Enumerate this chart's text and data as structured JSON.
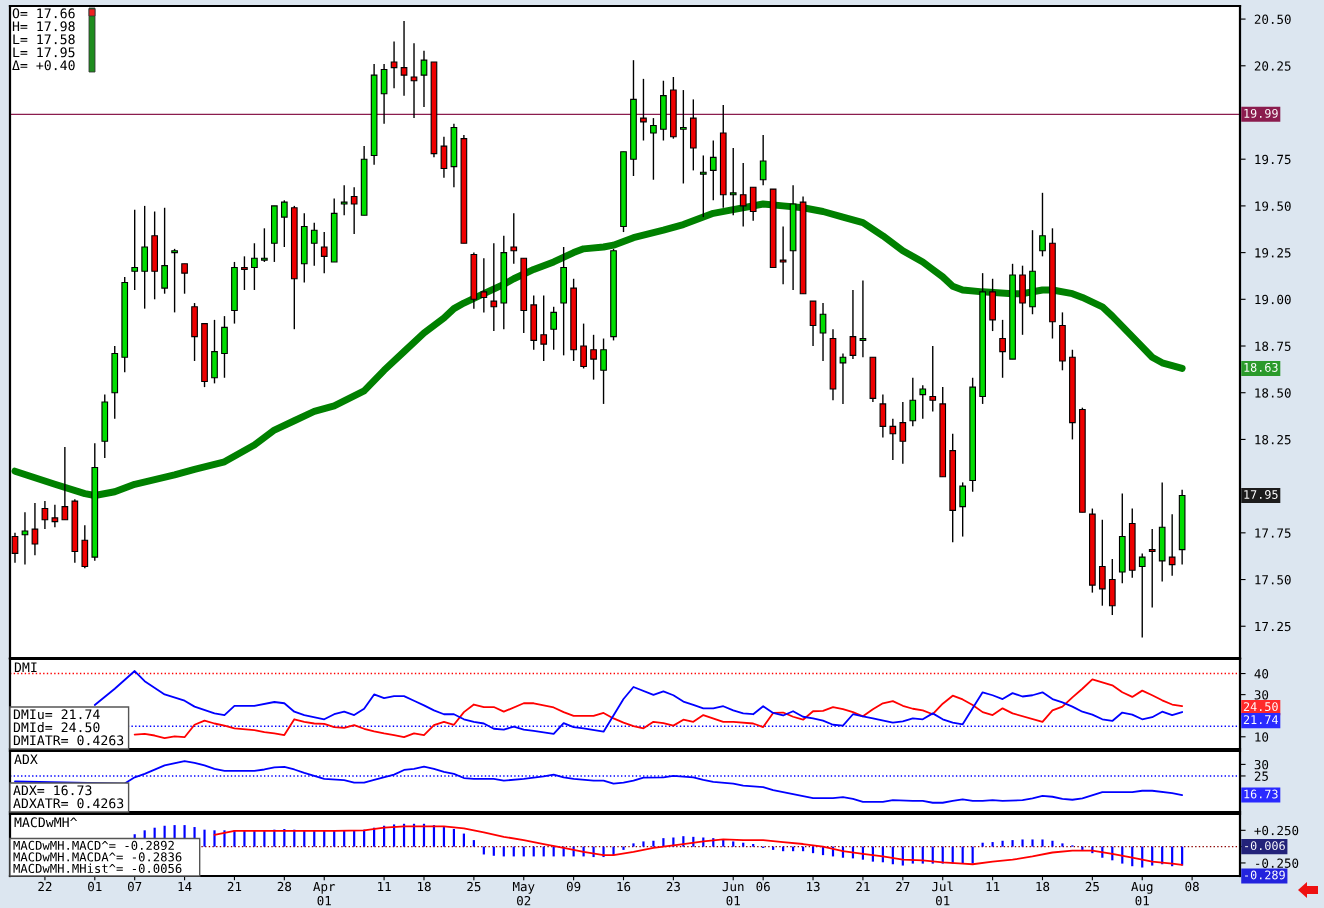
{
  "chart_data": [
    {
      "type": "candlestick",
      "categories": [
        null,
        null,
        null,
        null,
        null,
        null,
        null,
        null,
        null,
        null,
        null,
        null,
        null,
        null,
        null,
        null,
        null,
        null,
        null,
        null,
        null,
        null,
        null,
        null,
        null,
        null,
        null,
        null,
        null,
        null,
        null,
        null,
        null,
        null,
        null,
        null,
        null,
        null,
        null,
        null,
        null,
        null,
        null,
        null,
        null,
        null,
        null,
        null,
        null,
        null,
        null,
        null,
        null,
        null,
        null,
        null,
        null,
        null,
        null,
        null,
        null,
        null,
        null,
        null,
        null,
        null,
        null,
        null,
        null,
        null,
        null,
        null,
        null,
        null,
        null,
        null,
        null,
        null,
        null,
        null,
        null,
        null,
        null,
        null,
        null,
        null,
        null,
        null,
        null,
        null,
        null,
        null,
        null,
        null,
        null,
        null,
        null,
        null,
        null,
        null,
        null,
        null,
        null,
        null,
        null,
        null,
        null,
        null,
        null,
        null,
        null,
        null,
        null,
        null,
        null,
        null,
        null,
        null,
        null
      ],
      "ohlc": [
        [
          17.73,
          17.75,
          17.59,
          17.64
        ],
        [
          17.74,
          17.86,
          17.58,
          17.76
        ],
        [
          17.77,
          17.91,
          17.63,
          17.69
        ],
        [
          17.88,
          17.92,
          17.77,
          17.82
        ],
        [
          17.83,
          17.9,
          17.78,
          17.81
        ],
        [
          17.89,
          18.21,
          17.82,
          17.82
        ],
        [
          17.92,
          17.93,
          17.59,
          17.65
        ],
        [
          17.71,
          17.79,
          17.56,
          17.57
        ],
        [
          17.62,
          18.23,
          17.6,
          18.1
        ],
        [
          18.24,
          18.49,
          18.15,
          18.45
        ],
        [
          18.5,
          18.75,
          18.36,
          18.71
        ],
        [
          18.69,
          19.12,
          18.61,
          19.09
        ],
        [
          19.15,
          19.48,
          19.05,
          19.17
        ],
        [
          19.15,
          19.5,
          18.95,
          19.28
        ],
        [
          19.34,
          19.47,
          19.0,
          19.15
        ],
        [
          19.06,
          19.49,
          19.03,
          19.18
        ],
        [
          19.25,
          19.27,
          18.93,
          19.26
        ],
        [
          19.19,
          19.19,
          19.03,
          19.14
        ],
        [
          18.96,
          18.98,
          18.67,
          18.8
        ],
        [
          18.87,
          18.87,
          18.53,
          18.56
        ],
        [
          18.58,
          18.89,
          18.55,
          18.72
        ],
        [
          18.71,
          18.91,
          18.58,
          18.85
        ],
        [
          18.94,
          19.2,
          18.87,
          19.17
        ],
        [
          19.17,
          19.23,
          19.05,
          19.16
        ],
        [
          19.17,
          19.3,
          19.05,
          19.22
        ],
        [
          19.21,
          19.38,
          19.2,
          19.22
        ],
        [
          19.3,
          19.5,
          19.2,
          19.5
        ],
        [
          19.44,
          19.53,
          19.28,
          19.52
        ],
        [
          19.49,
          19.5,
          18.84,
          19.11
        ],
        [
          19.19,
          19.46,
          19.09,
          19.39
        ],
        [
          19.3,
          19.41,
          19.18,
          19.37
        ],
        [
          19.28,
          19.36,
          19.14,
          19.23
        ],
        [
          19.2,
          19.54,
          19.2,
          19.46
        ],
        [
          19.51,
          19.61,
          19.45,
          19.52
        ],
        [
          19.55,
          19.6,
          19.35,
          19.51
        ],
        [
          19.45,
          19.82,
          19.45,
          19.75
        ],
        [
          19.77,
          20.26,
          19.72,
          20.2
        ],
        [
          20.1,
          20.26,
          19.94,
          20.23
        ],
        [
          20.27,
          20.38,
          20.13,
          20.24
        ],
        [
          20.24,
          20.49,
          20.09,
          20.2
        ],
        [
          20.19,
          20.37,
          19.97,
          20.17
        ],
        [
          20.2,
          20.33,
          20.03,
          20.28
        ],
        [
          20.27,
          20.27,
          19.76,
          19.78
        ],
        [
          19.82,
          19.87,
          19.65,
          19.7
        ],
        [
          19.71,
          19.94,
          19.6,
          19.92
        ],
        [
          19.86,
          19.88,
          19.3,
          19.3
        ],
        [
          19.24,
          19.25,
          18.95,
          19.0
        ],
        [
          19.04,
          19.22,
          18.93,
          19.01
        ],
        [
          18.99,
          19.3,
          18.83,
          18.96
        ],
        [
          18.98,
          19.34,
          18.84,
          19.25
        ],
        [
          19.28,
          19.46,
          19.19,
          19.26
        ],
        [
          19.22,
          19.22,
          18.82,
          18.94
        ],
        [
          18.97,
          19.02,
          18.73,
          18.78
        ],
        [
          18.81,
          19.02,
          18.67,
          18.76
        ],
        [
          18.84,
          18.96,
          18.73,
          18.93
        ],
        [
          18.98,
          19.28,
          18.7,
          19.17
        ],
        [
          19.06,
          19.11,
          18.67,
          18.73
        ],
        [
          18.75,
          18.87,
          18.63,
          18.64
        ],
        [
          18.73,
          18.81,
          18.57,
          18.68
        ],
        [
          18.62,
          18.79,
          18.44,
          18.73
        ],
        [
          18.8,
          19.27,
          18.78,
          19.26
        ],
        [
          19.39,
          19.79,
          19.36,
          19.79
        ],
        [
          19.75,
          20.28,
          19.66,
          20.07
        ],
        [
          19.97,
          20.18,
          19.85,
          19.95
        ],
        [
          19.89,
          19.97,
          19.64,
          19.93
        ],
        [
          19.91,
          20.17,
          19.85,
          20.09
        ],
        [
          20.12,
          20.19,
          19.86,
          19.87
        ],
        [
          19.91,
          20.12,
          19.62,
          19.92
        ],
        [
          19.97,
          20.07,
          19.69,
          19.81
        ],
        [
          19.67,
          19.77,
          19.44,
          19.68
        ],
        [
          19.69,
          19.85,
          19.53,
          19.76
        ],
        [
          19.89,
          20.04,
          19.49,
          19.56
        ],
        [
          19.56,
          19.81,
          19.45,
          19.57
        ],
        [
          19.56,
          19.73,
          19.39,
          19.5
        ],
        [
          19.6,
          19.6,
          19.42,
          19.47
        ],
        [
          19.64,
          19.88,
          19.61,
          19.74
        ],
        [
          19.59,
          19.59,
          19.17,
          19.17
        ],
        [
          19.21,
          19.39,
          19.08,
          19.2
        ],
        [
          19.26,
          19.61,
          19.05,
          19.51
        ],
        [
          19.52,
          19.55,
          19.03,
          19.03
        ],
        [
          18.99,
          18.99,
          18.75,
          18.86
        ],
        [
          18.82,
          18.98,
          18.67,
          18.92
        ],
        [
          18.79,
          18.84,
          18.46,
          18.52
        ],
        [
          18.66,
          18.71,
          18.44,
          18.69
        ],
        [
          18.8,
          19.05,
          18.68,
          18.7
        ],
        [
          18.78,
          19.1,
          18.69,
          18.79
        ],
        [
          18.69,
          18.69,
          18.45,
          18.47
        ],
        [
          18.44,
          18.49,
          18.26,
          18.32
        ],
        [
          18.32,
          18.36,
          18.14,
          18.28
        ],
        [
          18.34,
          18.45,
          18.12,
          18.24
        ],
        [
          18.35,
          18.58,
          18.32,
          18.46
        ],
        [
          18.49,
          18.54,
          18.36,
          18.52
        ],
        [
          18.48,
          18.75,
          18.4,
          18.46
        ],
        [
          18.44,
          18.53,
          18.05,
          18.05
        ],
        [
          18.19,
          18.28,
          17.7,
          17.87
        ],
        [
          17.89,
          18.02,
          17.73,
          18.0
        ],
        [
          18.03,
          18.58,
          17.97,
          18.53
        ],
        [
          18.48,
          19.14,
          18.44,
          19.04
        ],
        [
          19.04,
          19.11,
          18.83,
          18.89
        ],
        [
          18.79,
          18.89,
          18.58,
          18.72
        ],
        [
          18.68,
          19.19,
          18.68,
          19.13
        ],
        [
          19.13,
          19.18,
          18.81,
          18.98
        ],
        [
          18.96,
          19.37,
          18.92,
          19.15
        ],
        [
          19.26,
          19.57,
          19.23,
          19.34
        ],
        [
          19.3,
          19.38,
          18.79,
          18.88
        ],
        [
          18.86,
          18.93,
          18.62,
          18.67
        ],
        [
          18.69,
          18.73,
          18.25,
          18.34
        ],
        [
          18.41,
          18.42,
          17.86,
          17.86
        ],
        [
          17.85,
          17.88,
          17.43,
          17.47
        ],
        [
          17.57,
          17.82,
          17.36,
          17.45
        ],
        [
          17.5,
          17.61,
          17.31,
          17.36
        ],
        [
          17.54,
          17.96,
          17.48,
          17.73
        ],
        [
          17.8,
          17.88,
          17.51,
          17.55
        ],
        [
          17.57,
          17.64,
          17.19,
          17.62
        ],
        [
          17.66,
          17.77,
          17.35,
          17.65
        ],
        [
          17.6,
          18.02,
          17.49,
          17.78
        ],
        [
          17.62,
          17.85,
          17.52,
          17.58
        ],
        [
          17.66,
          17.98,
          17.58,
          17.95
        ],
        null
      ],
      "series": [
        {
          "type": "line",
          "color": "#008000",
          "values": [
            18.08,
            null,
            null,
            null,
            18.01,
            null,
            null,
            17.96,
            17.95,
            null,
            17.97,
            null,
            18.01,
            null,
            null,
            null,
            18.06,
            null,
            18.09,
            null,
            null,
            18.13,
            null,
            null,
            18.22,
            null,
            18.3,
            null,
            18.35,
            null,
            18.4,
            null,
            18.43,
            null,
            null,
            18.51,
            null,
            18.62,
            null,
            18.72,
            null,
            18.82,
            null,
            18.9,
            18.95,
            18.98,
            null,
            19.03,
            null,
            19.08,
            19.11,
            null,
            19.16,
            null,
            19.2,
            null,
            19.25,
            19.27,
            null,
            19.28,
            19.29,
            null,
            19.33,
            null,
            null,
            19.37,
            null,
            19.4,
            null,
            19.44,
            19.46,
            null,
            19.48,
            null,
            null,
            19.51,
            null,
            19.5,
            null,
            19.49,
            null,
            19.47,
            null,
            19.44,
            null,
            19.41,
            null,
            19.34,
            null,
            19.26,
            null,
            19.2,
            19.16,
            19.12,
            19.07,
            19.05,
            null,
            19.04,
            null,
            null,
            19.03,
            19.03,
            null,
            19.05,
            19.05,
            null,
            19.03,
            19.01,
            null,
            18.96,
            18.91,
            null,
            18.8,
            null,
            18.69,
            18.66,
            null,
            18.63,
            null
          ]
        }
      ],
      "ylim": [
        17.08,
        20.57
      ],
      "yticks": [
        {
          "value": 17.25,
          "label": "17.25"
        },
        {
          "value": 17.5,
          "label": "17.50"
        },
        {
          "value": 17.75,
          "label": "17.75"
        },
        {
          "value": 18.25,
          "label": "18.25"
        },
        {
          "value": 18.5,
          "label": "18.50"
        },
        {
          "value": 18.75,
          "label": "18.75"
        },
        {
          "value": 19,
          "label": "19.00"
        },
        {
          "value": 19.25,
          "label": "19.25"
        },
        {
          "value": 19.5,
          "label": "19.50"
        },
        {
          "value": 19.75,
          "label": "19.75"
        },
        {
          "value": 20.25,
          "label": "20.25"
        },
        {
          "value": 20.5,
          "label": "20.50"
        }
      ],
      "tick_labels": "y",
      "ref_lines": [
        {
          "axis": "y",
          "value": 19.99,
          "label": "19.99",
          "color": "#8b1c4e"
        }
      ],
      "annotations": [
        "O= 17.66",
        "H= 17.98",
        "L= 17.58",
        "L= 17.95",
        "Δ= +0.40",
        "18.63",
        "17.95"
      ]
    },
    {
      "type": "line",
      "title": "DMI",
      "categories": [
        null,
        null,
        null,
        null,
        null,
        null,
        null,
        null,
        null,
        null,
        null,
        null,
        null,
        null,
        null,
        null,
        null,
        null,
        null,
        null,
        null,
        null,
        null,
        null,
        null,
        null,
        null,
        null,
        null,
        null,
        null,
        null,
        null,
        null,
        null,
        null,
        null,
        null,
        null,
        null,
        null,
        null,
        null,
        null,
        null,
        null,
        null,
        null,
        null,
        null,
        null,
        null,
        null,
        null,
        null,
        null,
        null,
        null,
        null,
        null,
        null,
        null,
        null,
        null,
        null,
        null,
        null,
        null,
        null,
        null,
        null,
        null,
        null,
        null,
        null,
        null,
        null,
        null,
        null,
        null,
        null,
        null,
        null,
        null,
        null,
        null,
        null,
        null,
        null,
        null,
        null,
        null,
        null,
        null,
        null,
        null,
        null,
        null,
        null,
        null,
        null,
        null,
        null,
        null,
        null,
        null,
        null,
        null,
        null,
        null,
        null,
        null,
        null,
        null,
        null,
        null,
        null,
        null,
        null
      ],
      "series": [
        {
          "color": "#ff0000",
          "values": [
            null,
            null,
            null,
            null,
            null,
            null,
            null,
            null,
            null,
            null,
            null,
            null,
            11.0,
            11.4,
            10.6,
            9.4,
            10.2,
            9.8,
            15.7,
            17.7,
            16.3,
            15.3,
            14.0,
            null,
            13.2,
            12.2,
            11.6,
            10.8,
            18.3,
            17.1,
            16.3,
            16.1,
            14.6,
            14.2,
            15.5,
            13.8,
            12.6,
            11.6,
            10.8,
            9.8,
            11.6,
            10.8,
            15.5,
            17.1,
            15.7,
            21.7,
            25.3,
            24.1,
            24.1,
            21.9,
            null,
            25.9,
            25.9,
            24.9,
            23.9,
            21.7,
            19.9,
            null,
            19.9,
            21.3,
            18.7,
            16.7,
            15.1,
            14.0,
            17.1,
            16.5,
            15.3,
            18.1,
            17.1,
            20.3,
            null,
            17.1,
            17.1,
            null,
            16.3,
            14.6,
            21.3,
            21.5,
            19.5,
            18.1,
            22.1,
            22.3,
            24.1,
            23.1,
            21.7,
            19.7,
            23.1,
            25.9,
            26.9,
            24.7,
            23.3,
            22.5,
            20.7,
            25.7,
            29.5,
            27.7,
            25.1,
            21.7,
            20.3,
            23.5,
            21.1,
            null,
            null,
            17.1,
            22.5,
            24.3,
            28.7,
            32.8,
            37.2,
            null,
            34.4,
            31.1,
            28.9,
            31.9,
            29.7,
            27.3,
            25.3,
            24.5,
            null
          ]
        },
        {
          "color": "#0000ff",
          "values": [
            null,
            null,
            null,
            null,
            null,
            null,
            null,
            null,
            25.1,
            null,
            32.8,
            null,
            41.2,
            36.4,
            null,
            30.1,
            null,
            27.1,
            24.3,
            null,
            21.1,
            20.3,
            24.7,
            null,
            24.7,
            null,
            26.5,
            25.9,
            21.9,
            20.3,
            null,
            18.3,
            20.7,
            21.9,
            20.3,
            23.3,
            30.1,
            28.3,
            29.3,
            29.3,
            27.1,
            24.9,
            22.5,
            20.7,
            20.7,
            18.3,
            17.1,
            16.3,
            13.8,
            13.4,
            14.8,
            13.4,
            12.8,
            null,
            11.4,
            16.5,
            14.6,
            14.0,
            null,
            12.4,
            null,
            27.9,
            33.6,
            null,
            29.9,
            31.5,
            29.7,
            26.7,
            25.1,
            23.5,
            23.5,
            24.5,
            22.5,
            21.1,
            20.7,
            24.5,
            21.3,
            20.1,
            22.1,
            19.5,
            18.7,
            17.7,
            15.7,
            15.3,
            20.7,
            19.7,
            18.7,
            null,
            16.7,
            17.3,
            18.7,
            18.3,
            21.1,
            18.3,
            16.7,
            15.9,
            23.5,
            31.1,
            29.7,
            27.9,
            30.7,
            29.1,
            29.7,
            31.1,
            27.9,
            26.3,
            24.3,
            21.9,
            20.5,
            18.3,
            17.5,
            21.5,
            20.5,
            18.3,
            19.3,
            21.9,
            20.3,
            21.74,
            null
          ]
        }
      ],
      "ylim": [
        4.2,
        46.9
      ],
      "yticks": [
        10,
        30,
        40
      ],
      "tick_labels": "y",
      "ref_lines": [
        {
          "axis": "y",
          "value": 40,
          "color": "#ff0000",
          "line_style": "dotted"
        },
        {
          "axis": "y",
          "value": 15,
          "color": "#0000ff",
          "line_style": "dotted"
        }
      ],
      "annotations": [
        "DMIu= 21.74",
        "DMId= 24.50",
        "DMIATR= 0.4263",
        "24.50",
        "21.74"
      ]
    },
    {
      "type": "line",
      "title": "ADX",
      "categories": [
        null,
        null,
        null,
        null,
        null,
        null,
        null,
        null,
        null,
        null,
        null,
        null,
        null,
        null,
        null,
        null,
        null,
        null,
        null,
        null,
        null,
        null,
        null,
        null,
        null,
        null,
        null,
        null,
        null,
        null,
        null,
        null,
        null,
        null,
        null,
        null,
        null,
        null,
        null,
        null,
        null,
        null,
        null,
        null,
        null,
        null,
        null,
        null,
        null,
        null,
        null,
        null,
        null,
        null,
        null,
        null,
        null,
        null,
        null,
        null,
        null,
        null,
        null,
        null,
        null,
        null,
        null,
        null,
        null,
        null,
        null,
        null,
        null,
        null,
        null,
        null,
        null,
        null,
        null,
        null,
        null,
        null,
        null,
        null,
        null,
        null,
        null,
        null,
        null,
        null,
        null,
        null,
        null,
        null,
        null,
        null,
        null,
        null,
        null,
        null,
        null,
        null,
        null,
        null,
        null,
        null,
        null,
        null,
        null,
        null,
        null,
        null,
        null,
        null,
        null,
        null,
        null,
        null,
        null
      ],
      "series": [
        {
          "color": "#0000ff",
          "values": [
            22.6,
            null,
            null,
            null,
            null,
            null,
            null,
            null,
            null,
            null,
            null,
            21.7,
            24.4,
            25.9,
            null,
            29.6,
            null,
            31.4,
            30.7,
            29.6,
            28.1,
            27.2,
            27.2,
            null,
            27.2,
            27.8,
            28.7,
            28.9,
            27.8,
            26.3,
            25.0,
            23.7,
            null,
            23.2,
            22.1,
            22.1,
            23.3,
            null,
            25.6,
            27.6,
            28.1,
            29.0,
            28.1,
            26.8,
            25.9,
            24.1,
            23.7,
            null,
            23.7,
            23.0,
            null,
            23.7,
            24.3,
            24.8,
            25.6,
            24.4,
            23.7,
            null,
            23.0,
            23.0,
            21.7,
            22.1,
            23.0,
            24.3,
            null,
            24.4,
            25.0,
            null,
            24.4,
            23.3,
            22.4,
            null,
            21.7,
            20.8,
            null,
            20.2,
            18.9,
            null,
            17.1,
            null,
            15.4,
            null,
            15.4,
            15.8,
            15.1,
            13.8,
            null,
            13.8,
            14.5,
            null,
            14.2,
            14.2,
            13.4,
            13.4,
            14.2,
            14.9,
            14.2,
            14.2,
            14.5,
            14.2,
            null,
            14.5,
            15.3,
            16.4,
            16.0,
            15.1,
            14.7,
            15.3,
            null,
            18.0,
            18.0,
            null,
            18.0,
            18.6,
            18.6,
            null,
            17.6,
            16.73,
            null
          ]
        }
      ],
      "ylim": [
        9.4,
        35.8
      ],
      "yticks": [
        25,
        30
      ],
      "tick_labels": "y",
      "ref_lines": [
        {
          "axis": "y",
          "value": 25,
          "color": "#0000ff",
          "line_style": "dotted"
        }
      ],
      "annotations": [
        "ADX= 16.73",
        "ADXATR= 0.4263",
        "16.73"
      ]
    },
    {
      "type": "bar",
      "title": "MACDwMH^",
      "categories": [
        null,
        null,
        null,
        "22",
        null,
        null,
        null,
        null,
        "01",
        null,
        null,
        null,
        "07",
        null,
        null,
        null,
        null,
        "14",
        null,
        null,
        null,
        null,
        "21",
        null,
        null,
        null,
        null,
        "28",
        null,
        null,
        null,
        "Apr\n01",
        null,
        null,
        null,
        null,
        null,
        "11",
        null,
        null,
        null,
        "18",
        null,
        null,
        null,
        null,
        "25",
        null,
        null,
        null,
        null,
        "May\n02",
        null,
        null,
        null,
        null,
        "09",
        null,
        null,
        null,
        null,
        "16",
        null,
        null,
        null,
        null,
        "23",
        null,
        null,
        null,
        null,
        null,
        "Jun\n01",
        null,
        null,
        "06",
        null,
        null,
        null,
        null,
        "13",
        null,
        null,
        null,
        null,
        "21",
        null,
        null,
        null,
        "27",
        null,
        null,
        null,
        "Jul\n01",
        null,
        null,
        null,
        null,
        "11",
        null,
        null,
        null,
        null,
        "18",
        null,
        null,
        null,
        null,
        "25",
        null,
        null,
        null,
        null,
        "Aug\n01",
        null,
        null,
        null,
        null,
        "08"
      ],
      "series": [
        {
          "type": "bar",
          "color": "#0000ff",
          "values": [
            null,
            null,
            null,
            null,
            null,
            null,
            null,
            null,
            null,
            null,
            null,
            null,
            0.19,
            0.25,
            0.29,
            0.32,
            0.33,
            0.33,
            0.3,
            0.26,
            0.25,
            0.25,
            0.25,
            0.25,
            0.25,
            0.25,
            0.26,
            0.27,
            0.26,
            0.25,
            0.25,
            0.24,
            0.24,
            0.24,
            0.25,
            0.26,
            0.29,
            0.32,
            0.34,
            0.35,
            0.35,
            0.35,
            0.33,
            0.3,
            0.27,
            0.2,
            0.1,
            -0.12,
            -0.14,
            -0.15,
            -0.15,
            -0.15,
            -0.15,
            -0.15,
            -0.15,
            -0.15,
            -0.15,
            -0.15,
            -0.16,
            -0.16,
            -0.13,
            -0.05,
            0.05,
            0.08,
            0.09,
            0.13,
            0.14,
            0.16,
            0.15,
            0.14,
            0.13,
            0.11,
            0.08,
            0.06,
            0.04,
            -0.02,
            -0.05,
            -0.07,
            -0.07,
            -0.07,
            -0.1,
            -0.13,
            -0.15,
            -0.17,
            -0.18,
            -0.2,
            -0.23,
            -0.24,
            -0.27,
            -0.29,
            -0.26,
            -0.26,
            -0.26,
            -0.26,
            -0.26,
            -0.26,
            -0.26,
            0.06,
            0.07,
            0.09,
            0.1,
            0.11,
            0.11,
            0.11,
            0.09,
            0.05,
            0.02,
            -0.05,
            -0.1,
            -0.17,
            -0.21,
            -0.26,
            -0.3,
            -0.32,
            -0.29,
            -0.27,
            -0.3,
            -0.289,
            null
          ]
        },
        {
          "type": "line",
          "color": "#ff0000",
          "values": [
            null,
            null,
            null,
            null,
            null,
            null,
            null,
            null,
            null,
            null,
            null,
            null,
            null,
            null,
            null,
            null,
            null,
            null,
            null,
            null,
            0.18,
            null,
            0.24,
            null,
            null,
            null,
            0.24,
            null,
            null,
            null,
            null,
            null,
            0.24,
            null,
            null,
            0.25,
            null,
            0.29,
            null,
            0.31,
            null,
            null,
            null,
            0.31,
            null,
            0.28,
            null,
            0.22,
            null,
            0.15,
            null,
            0.1,
            null,
            0.04,
            null,
            -0.02,
            null,
            -0.08,
            null,
            -0.13,
            -0.13,
            null,
            -0.08,
            null,
            -0.02,
            0.0,
            null,
            0.04,
            null,
            0.08,
            null,
            0.11,
            null,
            0.1,
            null,
            0.1,
            null,
            0.07,
            null,
            0.04,
            null,
            0.0,
            null,
            -0.07,
            null,
            -0.11,
            null,
            -0.15,
            null,
            -0.2,
            null,
            -0.21,
            null,
            -0.24,
            null,
            -0.26,
            -0.27,
            null,
            -0.23,
            null,
            -0.2,
            null,
            -0.15,
            null,
            -0.09,
            null,
            -0.06,
            null,
            -0.06,
            null,
            -0.11,
            null,
            -0.17,
            null,
            -0.23,
            null,
            -0.26,
            -0.28,
            null
          ]
        }
      ],
      "ylim": [
        -0.45,
        0.5
      ],
      "yticks": [
        {
          "value": 0.25,
          "label": "+0.250"
        },
        {
          "value": 0,
          "label": null
        },
        {
          "value": -0.25,
          "label": "-0.250"
        }
      ],
      "ref_lines": [
        {
          "axis": "y",
          "value": 0,
          "color": "#8b0000",
          "line_style": "dotted"
        }
      ],
      "annotations": [
        "MACDwMH.MACD^= -0.2892",
        "MACDwMH.MACDA^= -0.2836",
        "MACDwMH.MHist^= -0.0056",
        "-0.006",
        "-0.289"
      ]
    }
  ]
}
